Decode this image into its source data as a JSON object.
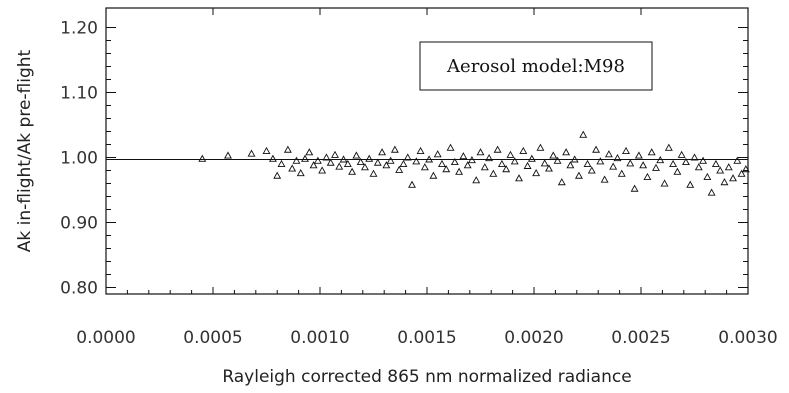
{
  "chart_data": {
    "type": "scatter",
    "xlabel": "Rayleigh corrected 865 nm normalized radiance",
    "ylabel": "Ak in-flight/Ak pre-flight",
    "xlim": [
      0.0,
      0.003
    ],
    "ylim": [
      0.79,
      1.23
    ],
    "x_ticks": [
      "0.0000",
      "0.0005",
      "0.0010",
      "0.0015",
      "0.0020",
      "0.0025",
      "0.0030"
    ],
    "y_ticks": [
      "0.80",
      "0.90",
      "1.00",
      "1.10",
      "1.20"
    ],
    "legend_text": "Aerosol model:M98",
    "legend_position": "top-right",
    "marker": "open-triangle",
    "reference_line_y": 0.997,
    "grid": false,
    "series": [
      {
        "points": [
          [
            0.00045,
            0.998
          ],
          [
            0.00057,
            1.003
          ],
          [
            0.00068,
            1.006
          ],
          [
            0.00075,
            1.01
          ],
          [
            0.00078,
            0.998
          ],
          [
            0.0008,
            0.972
          ],
          [
            0.00082,
            0.99
          ],
          [
            0.00085,
            1.012
          ],
          [
            0.00087,
            0.983
          ],
          [
            0.00089,
            0.995
          ],
          [
            0.00091,
            0.976
          ],
          [
            0.00093,
            0.998
          ],
          [
            0.00095,
            1.008
          ],
          [
            0.00097,
            0.988
          ],
          [
            0.00099,
            0.995
          ],
          [
            0.00101,
            0.98
          ],
          [
            0.00103,
            1.0
          ],
          [
            0.00105,
            0.992
          ],
          [
            0.00107,
            1.004
          ],
          [
            0.00109,
            0.986
          ],
          [
            0.00111,
            0.997
          ],
          [
            0.00113,
            0.99
          ],
          [
            0.00115,
            0.978
          ],
          [
            0.00117,
            1.003
          ],
          [
            0.00119,
            0.993
          ],
          [
            0.00121,
            0.985
          ],
          [
            0.00123,
            0.998
          ],
          [
            0.00125,
            0.975
          ],
          [
            0.00127,
            0.992
          ],
          [
            0.00129,
            1.008
          ],
          [
            0.00131,
            0.988
          ],
          [
            0.00133,
            0.995
          ],
          [
            0.00135,
            1.012
          ],
          [
            0.00137,
            0.981
          ],
          [
            0.00139,
            0.99
          ],
          [
            0.00141,
            1.0
          ],
          [
            0.00143,
            0.958
          ],
          [
            0.00145,
            0.994
          ],
          [
            0.00147,
            1.01
          ],
          [
            0.00149,
            0.985
          ],
          [
            0.00151,
            0.997
          ],
          [
            0.00153,
            0.972
          ],
          [
            0.00155,
            1.005
          ],
          [
            0.00157,
            0.99
          ],
          [
            0.00159,
            0.982
          ],
          [
            0.00161,
            1.015
          ],
          [
            0.00163,
            0.993
          ],
          [
            0.00165,
            0.978
          ],
          [
            0.00167,
            1.002
          ],
          [
            0.00169,
            0.988
          ],
          [
            0.00171,
            0.996
          ],
          [
            0.00173,
            0.965
          ],
          [
            0.00175,
            1.008
          ],
          [
            0.00177,
            0.985
          ],
          [
            0.00179,
            0.999
          ],
          [
            0.00181,
            0.975
          ],
          [
            0.00183,
            1.012
          ],
          [
            0.00185,
            0.99
          ],
          [
            0.00187,
            0.982
          ],
          [
            0.00189,
            1.004
          ],
          [
            0.00191,
            0.994
          ],
          [
            0.00193,
            0.968
          ],
          [
            0.00195,
            1.01
          ],
          [
            0.00197,
            0.987
          ],
          [
            0.00199,
            0.998
          ],
          [
            0.00201,
            0.976
          ],
          [
            0.00203,
            1.015
          ],
          [
            0.00205,
            0.991
          ],
          [
            0.00207,
            0.983
          ],
          [
            0.00209,
            1.003
          ],
          [
            0.00211,
            0.995
          ],
          [
            0.00213,
            0.962
          ],
          [
            0.00215,
            1.008
          ],
          [
            0.00217,
            0.988
          ],
          [
            0.00219,
            0.997
          ],
          [
            0.00221,
            0.972
          ],
          [
            0.00223,
            1.035
          ],
          [
            0.00225,
            0.99
          ],
          [
            0.00227,
            0.98
          ],
          [
            0.00229,
            1.012
          ],
          [
            0.00231,
            0.994
          ],
          [
            0.00233,
            0.966
          ],
          [
            0.00235,
            1.005
          ],
          [
            0.00237,
            0.986
          ],
          [
            0.00239,
            0.999
          ],
          [
            0.00241,
            0.975
          ],
          [
            0.00243,
            1.01
          ],
          [
            0.00245,
            0.991
          ],
          [
            0.00247,
            0.952
          ],
          [
            0.00249,
            1.003
          ],
          [
            0.00251,
            0.988
          ],
          [
            0.00253,
            0.97
          ],
          [
            0.00255,
            1.008
          ],
          [
            0.00257,
            0.984
          ],
          [
            0.00259,
            0.996
          ],
          [
            0.00261,
            0.96
          ],
          [
            0.00263,
            1.015
          ],
          [
            0.00265,
            0.99
          ],
          [
            0.00267,
            0.978
          ],
          [
            0.00269,
            1.004
          ],
          [
            0.00271,
            0.993
          ],
          [
            0.00273,
            0.958
          ],
          [
            0.00275,
            1.0
          ],
          [
            0.00277,
            0.985
          ],
          [
            0.00279,
            0.995
          ],
          [
            0.00281,
            0.97
          ],
          [
            0.00283,
            0.946
          ],
          [
            0.00285,
            0.99
          ],
          [
            0.00287,
            0.98
          ],
          [
            0.00289,
            0.962
          ],
          [
            0.00291,
            0.985
          ],
          [
            0.00293,
            0.968
          ],
          [
            0.00295,
            0.995
          ],
          [
            0.00297,
            0.975
          ],
          [
            0.00299,
            0.982
          ]
        ]
      }
    ]
  }
}
